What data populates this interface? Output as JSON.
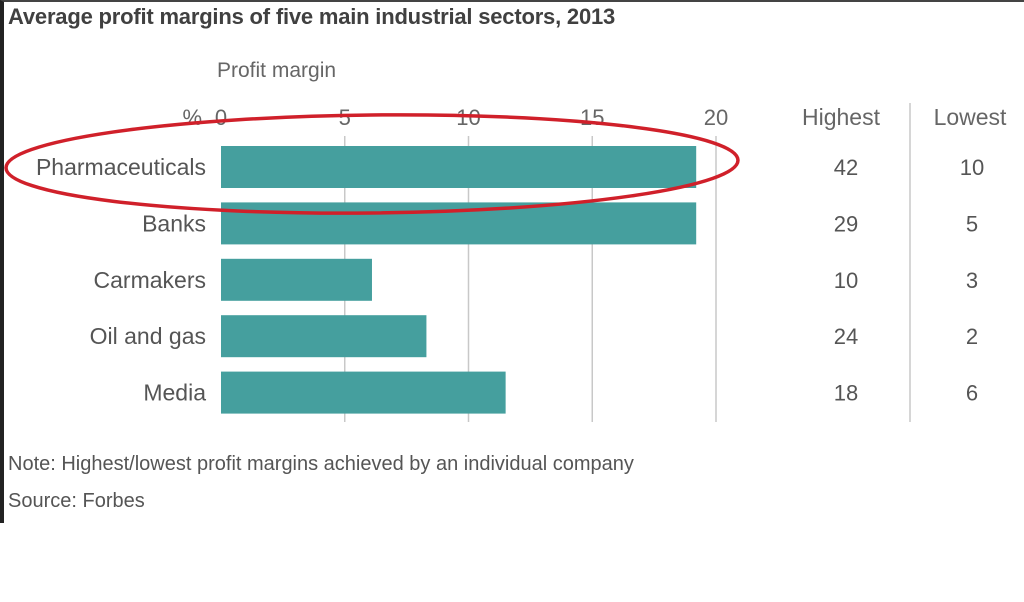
{
  "chart_data": {
    "type": "bar",
    "orientation": "horizontal",
    "title": "Average profit margins of five main industrial sectors, 2013",
    "subtitle": "Profit margin",
    "unit_label": "%",
    "xlabel": "Profit margin (%)",
    "ylabel": "",
    "xlim": [
      0,
      20
    ],
    "x_ticks": [
      0,
      5,
      10,
      15,
      20
    ],
    "grid": true,
    "categories": [
      "Pharmaceuticals",
      "Banks",
      "Carmakers",
      "Oil and gas",
      "Media"
    ],
    "values": [
      19.2,
      19.2,
      6.1,
      8.3,
      11.5
    ],
    "bar_color": "#459f9e",
    "table": {
      "columns": [
        "Highest",
        "Lowest"
      ],
      "highest": [
        42,
        29,
        10,
        24,
        18
      ],
      "lowest": [
        10,
        5,
        3,
        2,
        6
      ]
    },
    "annotations": [
      {
        "type": "ellipse-highlight",
        "target": "Pharmaceuticals",
        "color": "#d0202a"
      }
    ],
    "note": "Note: Highest/lowest profit margins achieved by an individual company",
    "source": "Source: Forbes"
  }
}
